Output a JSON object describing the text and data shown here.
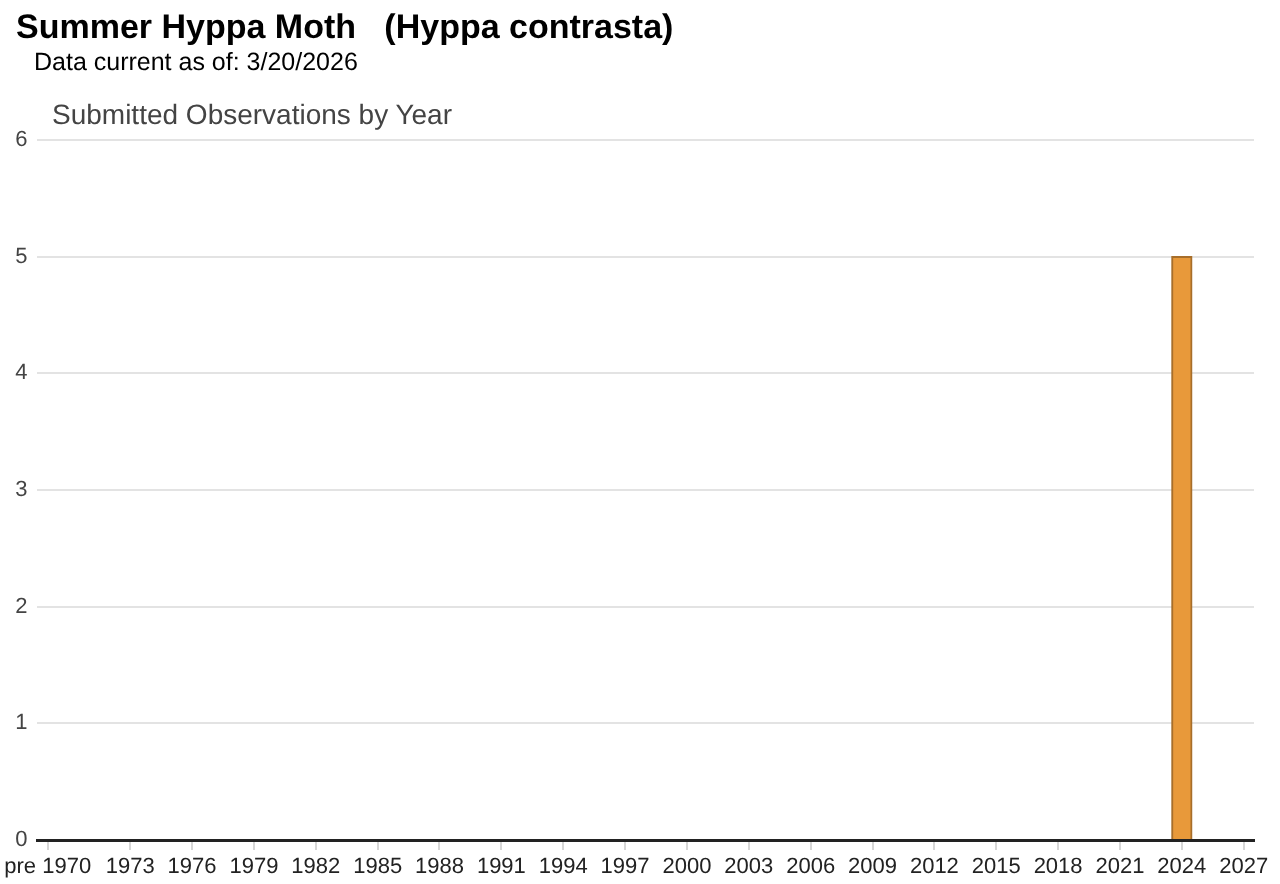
{
  "chart_data": {
    "type": "bar",
    "title": "Summer Hyppa Moth   (Hyppa contrasta)",
    "subtitle": "Data current as of: 3/20/2026",
    "annotations": [
      "Submitted Observations by Year"
    ],
    "x": [
      2024
    ],
    "values": [
      5
    ],
    "color": "#e8993a",
    "xlim": [
      1968.5,
      2027.5
    ],
    "xticks": [
      {
        "value": 1969,
        "label": "pre 1970"
      },
      1973,
      1976,
      1979,
      1982,
      1985,
      1988,
      1991,
      1994,
      1997,
      2000,
      2003,
      2006,
      2009,
      2012,
      2015,
      2018,
      2021,
      2024,
      2027
    ],
    "ylim": [
      0,
      6
    ],
    "yticks": [
      0,
      1,
      2,
      3,
      4,
      5,
      6
    ],
    "grid": "y"
  }
}
